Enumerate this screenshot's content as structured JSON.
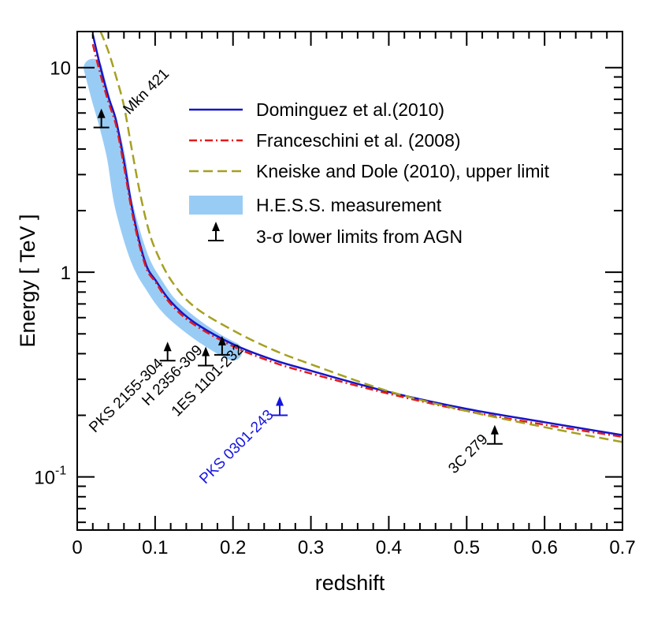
{
  "chart_data": {
    "type": "line",
    "xlabel": "redshift",
    "ylabel": "Energy  [ TeV ]",
    "xlim": [
      0,
      0.7
    ],
    "ylim": [
      0.055,
      15
    ],
    "yscale": "log",
    "grid": false,
    "legend_position": "top-right",
    "x_ticks": [
      "0",
      "0.1",
      "0.2",
      "0.3",
      "0.4",
      "0.5",
      "0.6",
      "0.7"
    ],
    "y_ticks": [
      {
        "value": 10,
        "label": "10"
      },
      {
        "value": 1,
        "label": "1"
      },
      {
        "value": 0.1,
        "label": "10",
        "sup": "-1"
      }
    ],
    "series": [
      {
        "name": "Dominguez et al.(2010)",
        "style": "solid",
        "color": "#1515c8",
        "x": [
          0.02,
          0.03,
          0.04,
          0.05,
          0.06,
          0.07,
          0.08,
          0.09,
          0.1,
          0.12,
          0.15,
          0.2,
          0.25,
          0.3,
          0.4,
          0.5,
          0.6,
          0.7
        ],
        "y": [
          14.5,
          10.0,
          7.2,
          5.5,
          3.5,
          2.1,
          1.4,
          1.05,
          0.92,
          0.72,
          0.57,
          0.445,
          0.375,
          0.33,
          0.26,
          0.215,
          0.185,
          0.16
        ]
      },
      {
        "name": "Franceschini et al. (2008)",
        "style": "dashdot",
        "color": "#e41a1a",
        "x": [
          0.02,
          0.03,
          0.04,
          0.05,
          0.06,
          0.07,
          0.08,
          0.09,
          0.1,
          0.12,
          0.15,
          0.2,
          0.25,
          0.3,
          0.4,
          0.5,
          0.6,
          0.7
        ],
        "y": [
          13.0,
          9.2,
          6.8,
          5.2,
          3.3,
          2.0,
          1.35,
          1.02,
          0.9,
          0.7,
          0.555,
          0.435,
          0.365,
          0.32,
          0.255,
          0.21,
          0.18,
          0.157
        ]
      },
      {
        "name": "Kneiske and Dole (2010), upper limit",
        "style": "dashed",
        "color": "#a6a020",
        "x": [
          0.03,
          0.04,
          0.05,
          0.06,
          0.07,
          0.08,
          0.09,
          0.1,
          0.12,
          0.15,
          0.2,
          0.25,
          0.3,
          0.4,
          0.5,
          0.6,
          0.7
        ],
        "y": [
          15.0,
          12.0,
          9.0,
          6.5,
          4.0,
          2.5,
          1.7,
          1.3,
          0.92,
          0.68,
          0.52,
          0.42,
          0.355,
          0.262,
          0.21,
          0.175,
          0.148
        ]
      }
    ],
    "band": {
      "name": "H.E.S.S. measurement",
      "color": "#99ccf5",
      "x": [
        0.02,
        0.03,
        0.04,
        0.05,
        0.06,
        0.08,
        0.1,
        0.12,
        0.15,
        0.18,
        0.2
      ],
      "y_low": [
        9.0,
        6.5,
        4.8,
        3.3,
        1.9,
        1.05,
        0.76,
        0.6,
        0.48,
        0.405,
        0.37
      ],
      "y_high": [
        11.0,
        7.8,
        5.7,
        4.0,
        2.35,
        1.3,
        0.95,
        0.75,
        0.6,
        0.5,
        0.455
      ]
    },
    "limits_legend": "3-σ lower limits from AGN",
    "lower_limits": [
      {
        "name": "Mkn 421",
        "x": 0.031,
        "y": 5.1,
        "color": "#000000"
      },
      {
        "name": "PKS 2155-304",
        "x": 0.116,
        "y": 0.37,
        "color": "#000000"
      },
      {
        "name": "H 2356-309",
        "x": 0.165,
        "y": 0.35,
        "color": "#000000"
      },
      {
        "name": "1ES 1101-232",
        "x": 0.186,
        "y": 0.395,
        "color": "#000000"
      },
      {
        "name": "PKS 0301-243",
        "x": 0.26,
        "y": 0.2,
        "color": "#1515e0"
      },
      {
        "name": "3C 279",
        "x": 0.536,
        "y": 0.145,
        "color": "#000000"
      }
    ]
  }
}
